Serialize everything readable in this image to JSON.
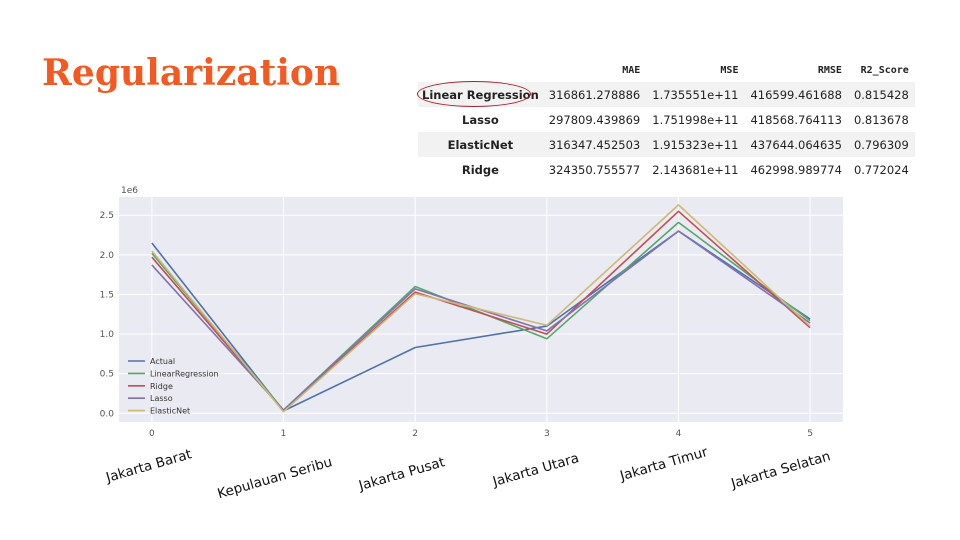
{
  "slide": {
    "title": "Regularization"
  },
  "table": {
    "columns": [
      "",
      "MAE",
      "MSE",
      "RMSE",
      "R2_Score"
    ],
    "rows": [
      {
        "model": "Linear Regression",
        "mae": "316861.278886",
        "mse": "1.735551e+11",
        "rmse": "416599.461688",
        "r2": "0.815428"
      },
      {
        "model": "Lasso",
        "mae": "297809.439869",
        "mse": "1.751998e+11",
        "rmse": "418568.764113",
        "r2": "0.813678"
      },
      {
        "model": "ElasticNet",
        "mae": "316347.452503",
        "mse": "1.915323e+11",
        "rmse": "437644.064635",
        "r2": "0.796309"
      },
      {
        "model": "Ridge",
        "mae": "324350.755577",
        "mse": "2.143681e+11",
        "rmse": "462998.989774",
        "r2": "0.772024"
      }
    ],
    "highlighted_row": "Linear Regression",
    "highlight_color": "#a8202a"
  },
  "chart_data": {
    "type": "line",
    "x": [
      0,
      1,
      2,
      3,
      4,
      5
    ],
    "x_tick_labels": [
      "0",
      "1",
      "2",
      "3",
      "4",
      "5"
    ],
    "category_labels": [
      "Jakarta Barat",
      "Kepulauan Seribu",
      "Jakarta Pusat",
      "Jakarta Utara",
      "Jakarta Timur",
      "Jakarta Selatan"
    ],
    "scale_label": "1e6",
    "y_ticks": [
      0.0,
      0.5,
      1.0,
      1.5,
      2.0,
      2.5
    ],
    "y_tick_labels": [
      "0.0",
      "0.5",
      "1.0",
      "1.5",
      "2.0",
      "2.5"
    ],
    "xlim": [
      -0.25,
      5.25
    ],
    "ylim": [
      -0.11,
      2.73
    ],
    "series": [
      {
        "name": "Actual",
        "color": "#4c72b0",
        "values": [
          2.15,
          0.03,
          0.83,
          1.1,
          2.3,
          1.19
        ]
      },
      {
        "name": "LinearRegression",
        "color": "#55a868",
        "values": [
          2.02,
          0.04,
          1.6,
          0.94,
          2.41,
          1.17
        ]
      },
      {
        "name": "Ridge",
        "color": "#c44e52",
        "values": [
          1.97,
          0.03,
          1.53,
          1.0,
          2.55,
          1.08
        ]
      },
      {
        "name": "Lasso",
        "color": "#8172b2",
        "values": [
          1.87,
          0.04,
          1.57,
          1.04,
          2.3,
          1.14
        ]
      },
      {
        "name": "ElasticNet",
        "color": "#ccb974",
        "values": [
          2.05,
          0.02,
          1.51,
          1.11,
          2.63,
          1.1
        ]
      }
    ],
    "legend_position": "center-left",
    "grid": true,
    "background": "#eaeaf2"
  }
}
